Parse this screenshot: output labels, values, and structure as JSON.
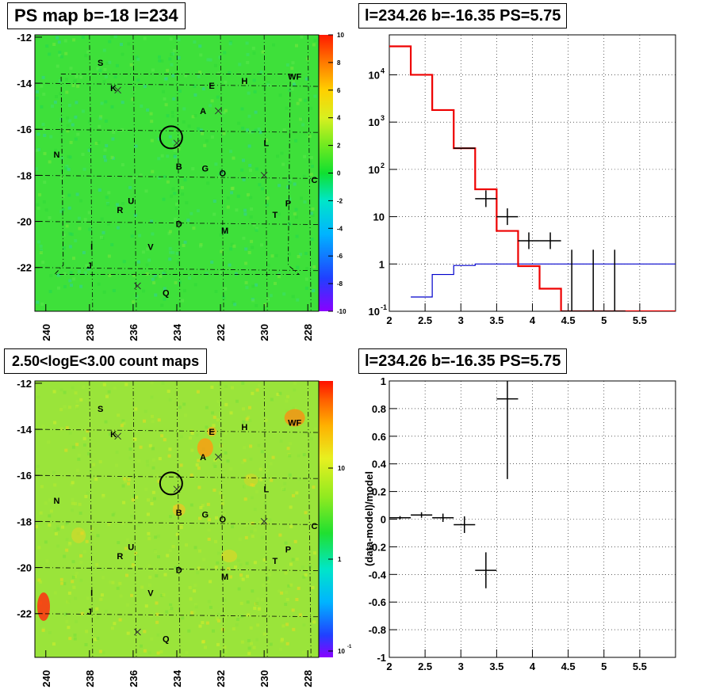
{
  "titles": {
    "ps_map": "PS map b=-18 l=234",
    "spectrum": "l=234.26 b=-16.35 PS=5.75",
    "count_map": "2.50<logE<3.00 count maps",
    "residual": "l=234.26 b=-16.35 PS=5.75"
  },
  "maps": {
    "x_ticks": [
      "240",
      "238",
      "236",
      "234",
      "232",
      "230",
      "228"
    ],
    "y_ticks": [
      "-12",
      "-14",
      "-16",
      "-18",
      "-20",
      "-22"
    ],
    "sources": [
      "S",
      "K",
      "E",
      "H",
      "WF",
      "A",
      "L",
      "N",
      "B",
      "G",
      "O",
      "C",
      "U",
      "R",
      "P",
      "T",
      "D",
      "M",
      "I",
      "V",
      "J",
      "Q"
    ],
    "ps_colorbar_ticks": [
      "10",
      "8",
      "6",
      "4",
      "2",
      "0",
      "-2",
      "-4",
      "-6",
      "-8",
      "-10"
    ],
    "count_colorbar_ticks": [
      "10",
      "1",
      "10"
    ],
    "count_colorbar_exp": "-1"
  },
  "chart_data": [
    {
      "type": "heatmap",
      "title": "PS map b=-18 l=234",
      "x_range": [
        240.5,
        227.5
      ],
      "y_range": [
        -23.9,
        -11.9
      ],
      "z_range": [
        -10,
        10
      ],
      "x_ticks": [
        240,
        238,
        236,
        234,
        232,
        230,
        228
      ],
      "y_ticks": [
        -12,
        -14,
        -16,
        -18,
        -20,
        -22
      ],
      "grid": true
    },
    {
      "type": "line",
      "title": "l=234.26 b=-16.35 PS=5.75",
      "xlim": [
        2,
        6
      ],
      "ylim": [
        0.1,
        70000
      ],
      "y_scale": "log",
      "x_ticks": [
        2,
        2.5,
        3,
        3.5,
        4,
        4.5,
        5,
        5.5
      ],
      "y_ticks": [
        "10^-1",
        "1",
        "10",
        "10^2",
        "10^3",
        "10^4"
      ],
      "grid": true,
      "series": [
        {
          "style": "data points",
          "points": [
            [
              3.05,
              280
            ],
            [
              3.35,
              24
            ],
            [
              3.65,
              10
            ],
            [
              3.95,
              3.1
            ],
            [
              4.25,
              3.1
            ],
            [
              4.55,
              0.1
            ],
            [
              4.85,
              0.1
            ],
            [
              5.15,
              0.1
            ]
          ]
        },
        {
          "style": "red step",
          "steps": [
            [
              2.0,
              2.3,
              40000
            ],
            [
              2.3,
              2.6,
              10000
            ],
            [
              2.6,
              2.9,
              1800
            ],
            [
              2.9,
              3.2,
              280
            ],
            [
              3.2,
              3.5,
              38
            ],
            [
              3.5,
              3.8,
              5
            ],
            [
              3.8,
              4.1,
              0.9
            ],
            [
              4.1,
              4.4,
              0.3
            ],
            [
              4.4,
              6.0,
              0.1
            ]
          ]
        },
        {
          "style": "blue step",
          "steps": [
            [
              2.3,
              2.6,
              0.2
            ],
            [
              2.6,
              2.9,
              0.6
            ],
            [
              2.9,
              3.2,
              0.93
            ],
            [
              3.2,
              6.0,
              1.0
            ]
          ]
        }
      ]
    },
    {
      "type": "heatmap",
      "title": "2.50<logE<3.00 count maps",
      "x_range": [
        240.5,
        227.5
      ],
      "y_range": [
        -23.9,
        -11.9
      ],
      "z_scale": "log",
      "z_ticks": [
        "10",
        "1",
        "10^-1"
      ],
      "grid": true
    },
    {
      "type": "scatter",
      "title": "l=234.26 b=-16.35 PS=5.75",
      "ylabel": "(data-model)/model",
      "xlim": [
        2,
        6
      ],
      "ylim": [
        -1,
        1
      ],
      "x_ticks": [
        2,
        2.5,
        3,
        3.5,
        4,
        4.5,
        5,
        5.5
      ],
      "y_ticks": [
        -1,
        -0.8,
        -0.6,
        -0.4,
        -0.2,
        0,
        0.2,
        0.4,
        0.6,
        0.8,
        1
      ],
      "grid": true,
      "points": [
        {
          "x": 2.15,
          "y": 0.01,
          "xerr": 0.15,
          "yerr": 0.012
        },
        {
          "x": 2.45,
          "y": 0.03,
          "xerr": 0.15,
          "yerr": 0.02
        },
        {
          "x": 2.75,
          "y": 0.01,
          "xerr": 0.15,
          "yerr": 0.03
        },
        {
          "x": 3.05,
          "y": -0.04,
          "xerr": 0.15,
          "yerr": 0.06
        },
        {
          "x": 3.35,
          "y": -0.37,
          "xerr": 0.15,
          "yerr": 0.13
        },
        {
          "x": 3.65,
          "y": 0.87,
          "xerr": 0.15,
          "yerr": 0.58
        }
      ]
    }
  ]
}
